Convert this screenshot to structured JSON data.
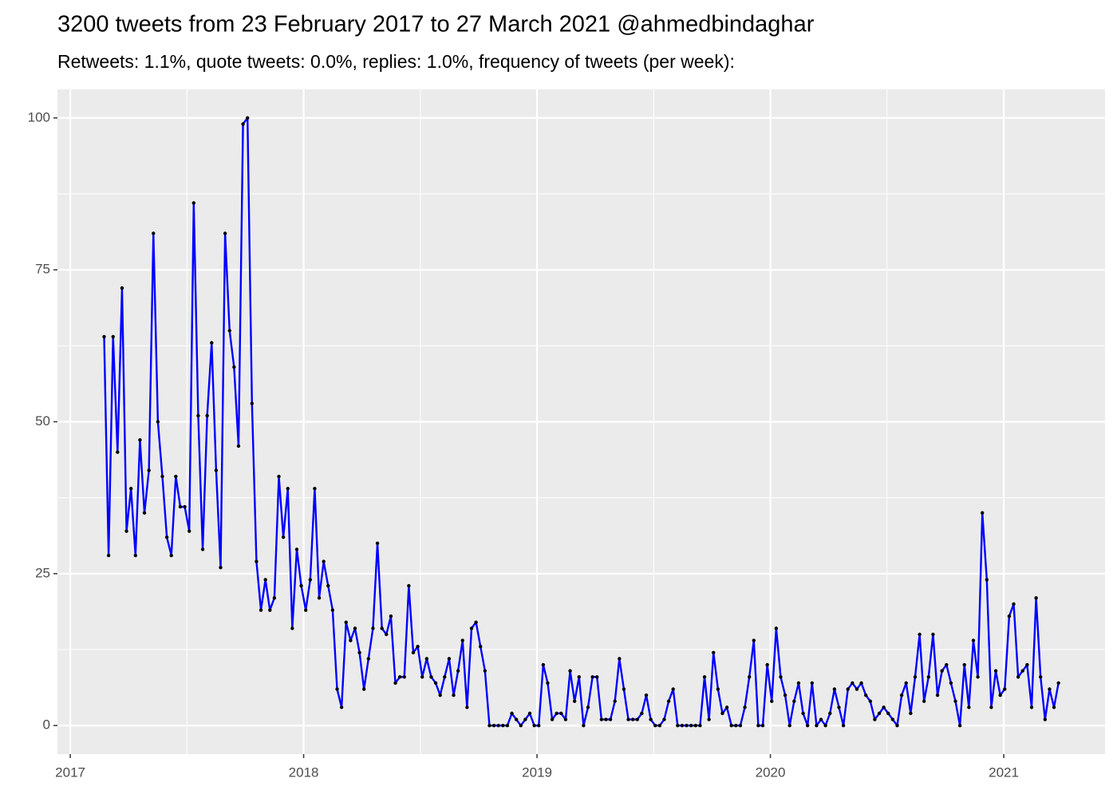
{
  "chart_data": {
    "type": "line",
    "title": "3200 tweets from 23 February 2017 to 27 March 2021 @ahmedbindaghar",
    "subtitle": "Retweets: 1.1%, quote tweets: 0.0%, replies: 1.0%, frequency of tweets (per week):",
    "color": "#0000ff",
    "point_color": "#000000",
    "grid": true,
    "xlim": [
      2016.945,
      2021.434
    ],
    "ylim": [
      -4.7,
      104.7
    ],
    "xticks": [
      2017,
      2018,
      2019,
      2020,
      2021
    ],
    "yticks": [
      0,
      25,
      50,
      75,
      100
    ],
    "x": [
      2017.145,
      2017.1642,
      2017.1834,
      2017.2026,
      2017.2218,
      2017.241,
      2017.2602,
      2017.2794,
      2017.2986,
      2017.3178,
      2017.337,
      2017.3562,
      2017.3754,
      2017.3946,
      2017.4138,
      2017.433,
      2017.4522,
      2017.4714,
      2017.4906,
      2017.5098,
      2017.529,
      2017.5482,
      2017.5674,
      2017.5866,
      2017.6058,
      2017.625,
      2017.6442,
      2017.6634,
      2017.6826,
      2017.7018,
      2017.721,
      2017.7402,
      2017.7594,
      2017.7786,
      2017.7978,
      2017.817,
      2017.8362,
      2017.8554,
      2017.8746,
      2017.8938,
      2017.913,
      2017.9322,
      2017.9514,
      2017.9706,
      2017.9898,
      2018.009,
      2018.0282,
      2018.0474,
      2018.0666,
      2018.0858,
      2018.105,
      2018.1242,
      2018.1434,
      2018.1626,
      2018.1818,
      2018.201,
      2018.2202,
      2018.2394,
      2018.2586,
      2018.2778,
      2018.297,
      2018.3162,
      2018.3354,
      2018.3546,
      2018.3738,
      2018.393,
      2018.4122,
      2018.4314,
      2018.4506,
      2018.4698,
      2018.489,
      2018.5082,
      2018.5274,
      2018.5466,
      2018.5658,
      2018.585,
      2018.6042,
      2018.6234,
      2018.6426,
      2018.6618,
      2018.681,
      2018.7002,
      2018.7194,
      2018.7386,
      2018.7578,
      2018.777,
      2018.7962,
      2018.8154,
      2018.8346,
      2018.8538,
      2018.873,
      2018.8922,
      2018.9114,
      2018.9306,
      2018.9498,
      2018.969,
      2018.9882,
      2019.0074,
      2019.0266,
      2019.0458,
      2019.065,
      2019.0842,
      2019.1034,
      2019.1226,
      2019.1418,
      2019.161,
      2019.1802,
      2019.1994,
      2019.2186,
      2019.2378,
      2019.257,
      2019.2762,
      2019.2954,
      2019.3146,
      2019.3338,
      2019.353,
      2019.3722,
      2019.3914,
      2019.4106,
      2019.4298,
      2019.449,
      2019.4682,
      2019.4874,
      2019.5066,
      2019.5258,
      2019.545,
      2019.5642,
      2019.5834,
      2019.6026,
      2019.6218,
      2019.641,
      2019.6602,
      2019.6794,
      2019.6986,
      2019.7178,
      2019.737,
      2019.7562,
      2019.7754,
      2019.7946,
      2019.8138,
      2019.833,
      2019.8522,
      2019.8714,
      2019.8906,
      2019.9098,
      2019.929,
      2019.9482,
      2019.9674,
      2019.9866,
      2020.0058,
      2020.025,
      2020.0442,
      2020.0634,
      2020.0826,
      2020.1018,
      2020.121,
      2020.1402,
      2020.1594,
      2020.1786,
      2020.1978,
      2020.217,
      2020.2362,
      2020.2554,
      2020.2746,
      2020.2938,
      2020.313,
      2020.3322,
      2020.3514,
      2020.3706,
      2020.3898,
      2020.409,
      2020.4282,
      2020.4474,
      2020.4666,
      2020.4858,
      2020.505,
      2020.5242,
      2020.5434,
      2020.5626,
      2020.5818,
      2020.601,
      2020.6202,
      2020.6394,
      2020.6586,
      2020.6778,
      2020.697,
      2020.7162,
      2020.7354,
      2020.7546,
      2020.7738,
      2020.793,
      2020.8122,
      2020.8314,
      2020.8506,
      2020.8698,
      2020.889,
      2020.9082,
      2020.9274,
      2020.9466,
      2020.9658,
      2020.985,
      2021.0042,
      2021.0234,
      2021.0426,
      2021.0618,
      2021.081,
      2021.1002,
      2021.1194,
      2021.1386,
      2021.1578,
      2021.177,
      2021.1962,
      2021.2154,
      2021.2346
    ],
    "values": [
      64,
      28,
      64,
      45,
      72,
      32,
      39,
      28,
      47,
      35,
      42,
      81,
      50,
      41,
      31,
      28,
      41,
      36,
      36,
      32,
      86,
      51,
      29,
      51,
      63,
      42,
      26,
      81,
      65,
      59,
      46,
      99,
      100,
      53,
      27,
      19,
      24,
      19,
      21,
      41,
      31,
      39,
      16,
      29,
      23,
      19,
      24,
      39,
      21,
      27,
      23,
      19,
      6,
      3,
      17,
      14,
      16,
      12,
      6,
      11,
      16,
      30,
      16,
      15,
      18,
      7,
      8,
      8,
      23,
      12,
      13,
      8,
      11,
      8,
      7,
      5,
      8,
      11,
      5,
      9,
      14,
      3,
      16,
      17,
      13,
      9,
      0,
      0,
      0,
      0,
      0,
      2,
      1,
      0,
      1,
      2,
      0,
      0,
      10,
      7,
      1,
      2,
      2,
      1,
      9,
      4,
      8,
      0,
      3,
      8,
      8,
      1,
      1,
      1,
      4,
      11,
      6,
      1,
      1,
      1,
      2,
      5,
      1,
      0,
      0,
      1,
      4,
      6,
      0,
      0,
      0,
      0,
      0,
      0,
      8,
      1,
      12,
      6,
      2,
      3,
      0,
      0,
      0,
      3,
      8,
      14,
      0,
      0,
      10,
      4,
      16,
      8,
      5,
      0,
      4,
      7,
      2,
      0,
      7,
      0,
      1,
      0,
      2,
      6,
      3,
      0,
      6,
      7,
      6,
      7,
      5,
      4,
      1,
      2,
      3,
      2,
      1,
      0,
      5,
      7,
      2,
      8,
      15,
      4,
      8,
      15,
      5,
      9,
      10,
      7,
      4,
      0,
      10,
      3,
      14,
      8,
      35,
      24,
      3,
      9,
      5,
      6,
      18,
      20,
      8,
      9,
      10,
      3,
      21,
      8,
      1,
      6,
      3,
      7
    ]
  }
}
